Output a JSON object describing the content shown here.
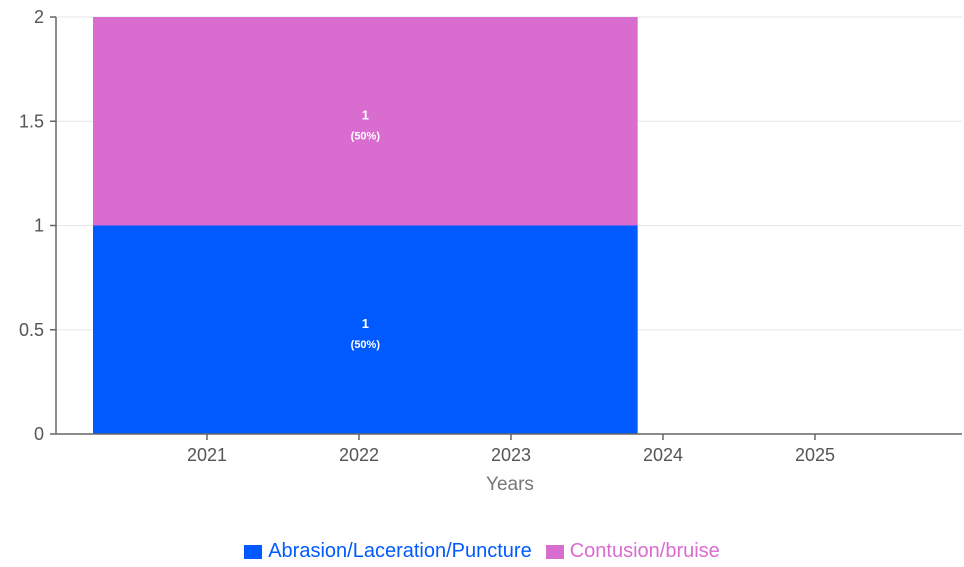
{
  "chart_data": {
    "type": "bar",
    "stacked": true,
    "xlabel": "Years",
    "ylabel": "",
    "ylim": [
      0,
      2
    ],
    "yticks": [
      {
        "value": 0,
        "label": "0"
      },
      {
        "value": 0.5,
        "label": "0.5"
      },
      {
        "value": 1,
        "label": "1"
      },
      {
        "value": 1.5,
        "label": "1.5"
      },
      {
        "value": 2,
        "label": "2"
      }
    ],
    "xticks": [
      "2021",
      "2022",
      "2023",
      "2024",
      "2025"
    ],
    "bar": {
      "from": "2020-04",
      "to": "2023-11",
      "segments": [
        {
          "series": "Abrasion/Laceration/Puncture",
          "value": 1,
          "label": "1",
          "pct_label": "(50%)",
          "color": "#005aff"
        },
        {
          "series": "Contusion/bruise",
          "value": 1,
          "label": "1",
          "pct_label": "(50%)",
          "color": "#d96ccf"
        }
      ]
    },
    "grid": true,
    "legend_position": "bottom-center",
    "series": [
      {
        "name": "Abrasion/Laceration/Puncture",
        "color": "#005aff"
      },
      {
        "name": "Contusion/bruise",
        "color": "#d96ccf"
      }
    ]
  }
}
